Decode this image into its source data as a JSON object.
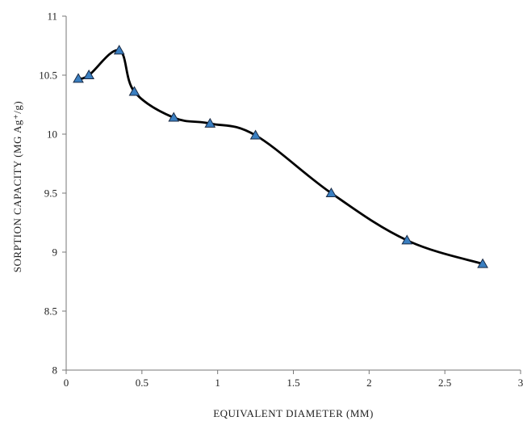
{
  "chart_data": {
    "type": "line",
    "title": "",
    "xlabel": "EQUIVALENT DIAMETER (MM)",
    "ylabel": "SORPTION CAPACITY (MG Ag⁺/g)",
    "xlim": [
      0,
      3
    ],
    "ylim": [
      8,
      11
    ],
    "x_ticks": [
      "0",
      "0.5",
      "1",
      "1.5",
      "2",
      "2.5",
      "3"
    ],
    "y_ticks": [
      "8",
      "8.5",
      "9",
      "9.5",
      "10",
      "10.5",
      "11"
    ],
    "grid": false,
    "legend": "none",
    "series": [
      {
        "x": [
          0.08,
          0.15,
          0.35,
          0.45,
          0.71,
          0.95,
          1.25,
          1.75,
          2.25,
          2.75
        ],
        "y": [
          10.47,
          10.5,
          10.71,
          10.36,
          10.14,
          10.09,
          9.99,
          9.5,
          9.1,
          8.9
        ],
        "marker": "triangle",
        "line_color": "#000000",
        "marker_color": "#3a7fc1"
      }
    ]
  }
}
